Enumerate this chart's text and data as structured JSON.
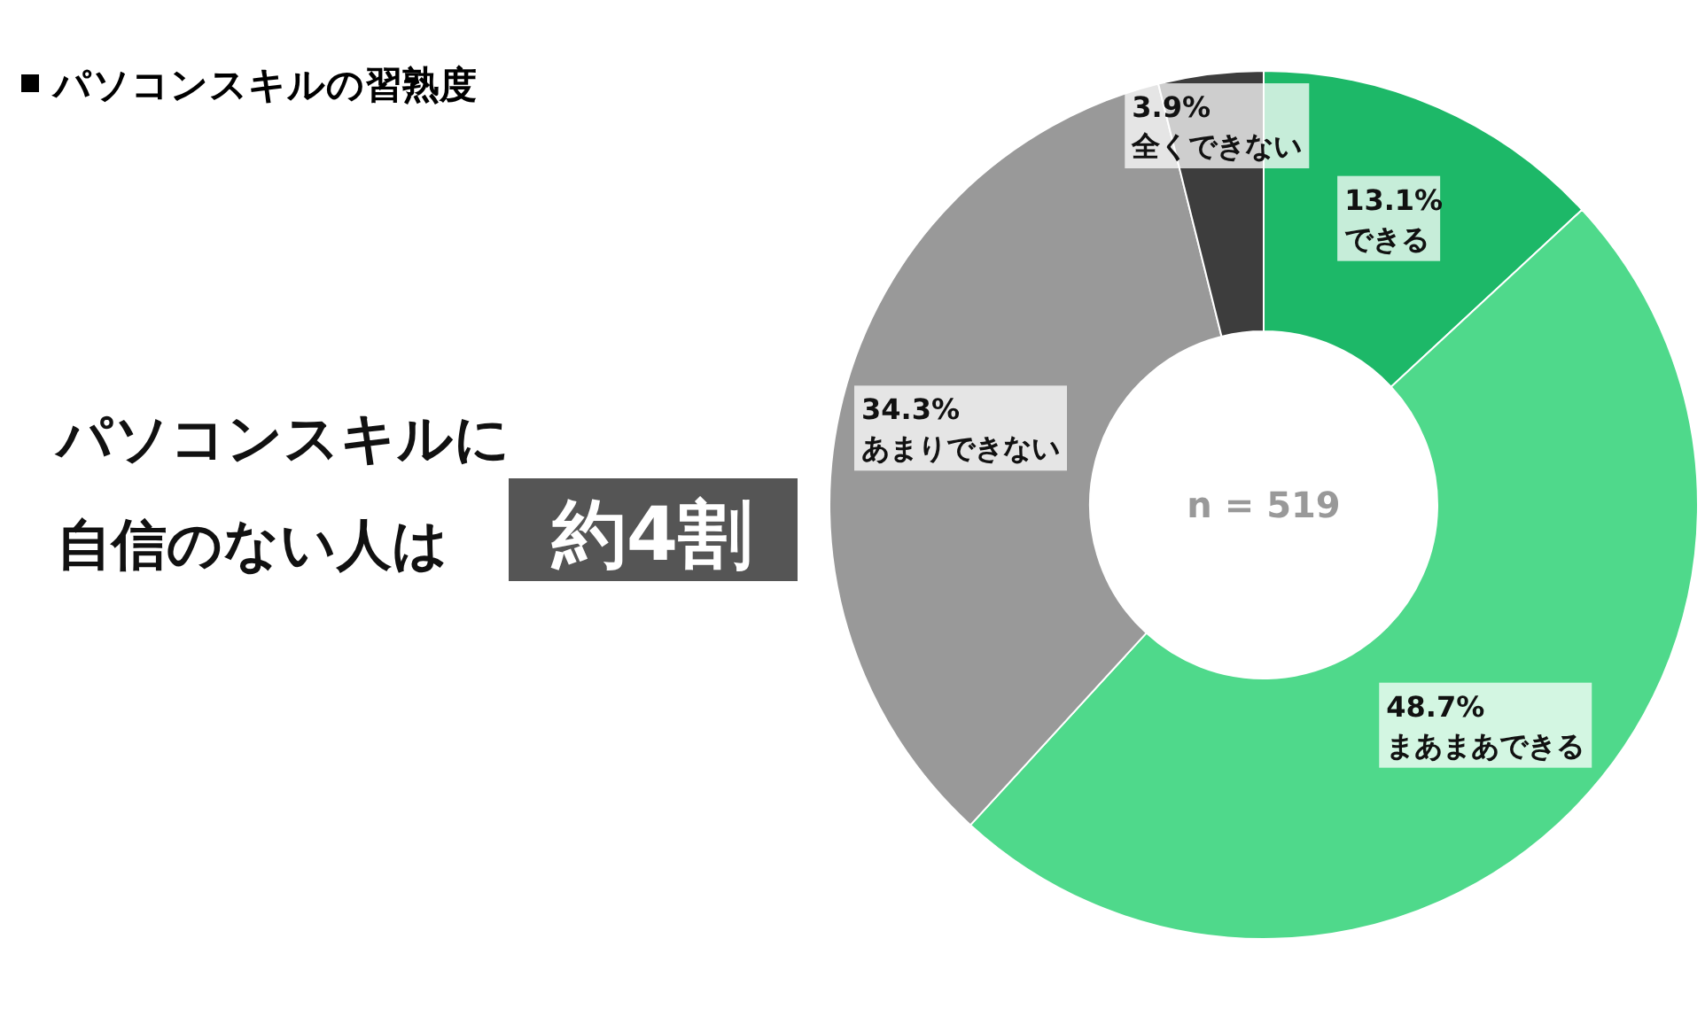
{
  "chart_data": {
    "type": "donut",
    "title": "パソコンスキルの習熟度",
    "categories": [
      "できる",
      "まあまあできる",
      "あまりできない",
      "全くできない"
    ],
    "values": [
      13.1,
      48.7,
      34.3,
      3.9
    ],
    "colors": [
      "#1db868",
      "#4fd98b",
      "#999999",
      "#3d3d3d"
    ],
    "value_labels": [
      "13.1%",
      "48.7%",
      "34.3%",
      "3.9%"
    ],
    "annotations": [
      "n = 519",
      "パソコンスキルに",
      "自信のない人は",
      "約4割"
    ]
  }
}
